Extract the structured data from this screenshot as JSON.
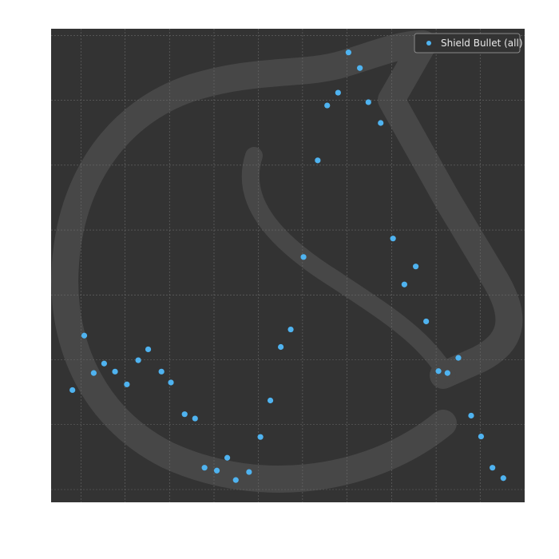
{
  "chart_data": {
    "type": "scatter",
    "title": "",
    "xlabel": "",
    "ylabel": "",
    "xlim": [
      0,
      100
    ],
    "ylim": [
      0,
      100
    ],
    "grid": true,
    "legend_position": "top-right",
    "background": "#333333",
    "watermark": "chess-knight-logo",
    "series": [
      {
        "name": "Shield Bullet (all)",
        "color": "#4fb3f0",
        "points": [
          [
            4.5,
            23.7
          ],
          [
            7.0,
            35.2
          ],
          [
            9.0,
            27.3
          ],
          [
            11.2,
            29.3
          ],
          [
            13.5,
            27.6
          ],
          [
            16.0,
            24.9
          ],
          [
            18.4,
            30.0
          ],
          [
            20.5,
            32.3
          ],
          [
            23.3,
            27.6
          ],
          [
            25.3,
            25.3
          ],
          [
            28.2,
            18.6
          ],
          [
            30.4,
            17.7
          ],
          [
            32.4,
            7.3
          ],
          [
            35.0,
            6.7
          ],
          [
            37.2,
            9.4
          ],
          [
            39.0,
            4.7
          ],
          [
            41.8,
            6.4
          ],
          [
            44.2,
            13.8
          ],
          [
            46.3,
            21.5
          ],
          [
            48.5,
            32.8
          ],
          [
            50.6,
            36.5
          ],
          [
            53.3,
            51.8
          ],
          [
            56.3,
            72.2
          ],
          [
            58.3,
            83.8
          ],
          [
            60.6,
            86.5
          ],
          [
            62.8,
            95.0
          ],
          [
            65.2,
            91.7
          ],
          [
            67.0,
            84.5
          ],
          [
            69.6,
            80.1
          ],
          [
            72.2,
            55.7
          ],
          [
            74.6,
            46.0
          ],
          [
            77.0,
            49.8
          ],
          [
            79.2,
            38.2
          ],
          [
            81.8,
            27.7
          ],
          [
            83.7,
            27.3
          ],
          [
            86.0,
            30.5
          ],
          [
            88.7,
            18.3
          ],
          [
            90.8,
            13.9
          ],
          [
            93.2,
            7.3
          ],
          [
            95.5,
            5.1
          ]
        ]
      }
    ]
  }
}
